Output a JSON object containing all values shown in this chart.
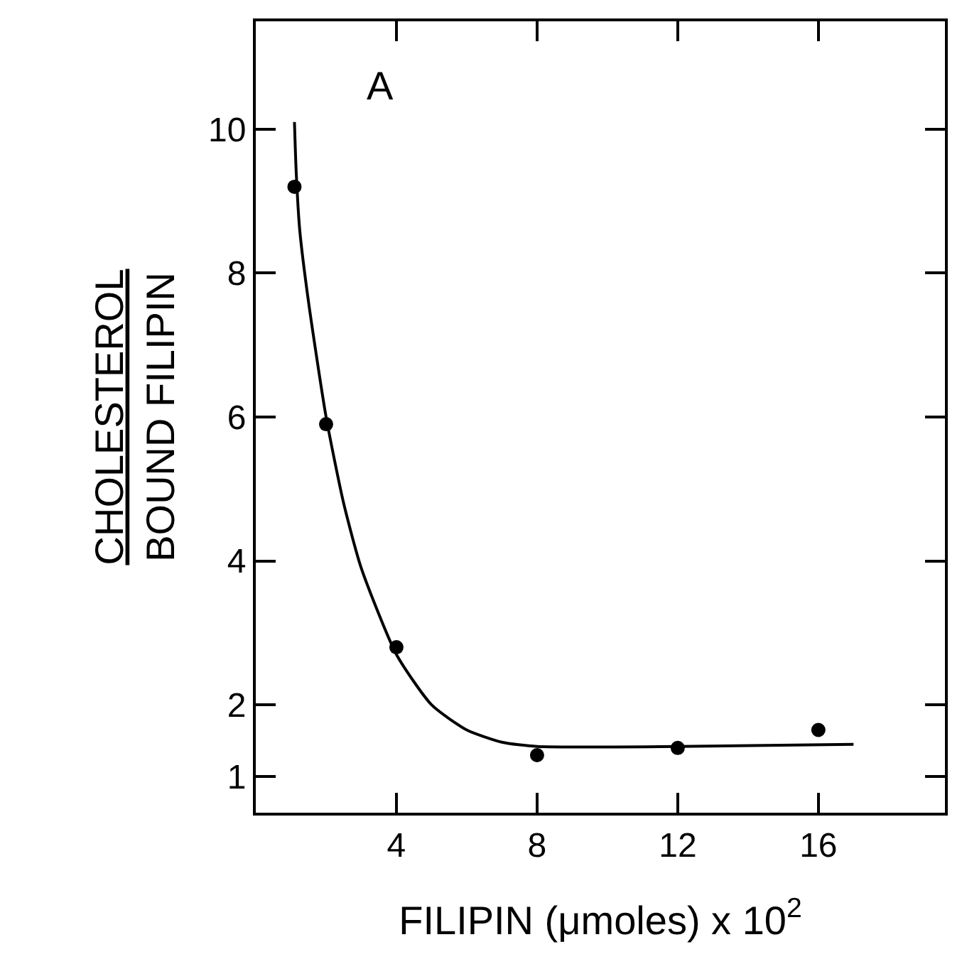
{
  "chart_data": {
    "type": "scatter",
    "xlabel": "FILIPIN (μmoles) x 10$^{2}$",
    "ylabel": "CHOLESTEROL\nBOUND FILIPIN",
    "annotations": [
      "A"
    ],
    "series": [
      {
        "color": "#000000",
        "marker": "circle",
        "x": [
          1.1,
          2,
          4,
          8,
          12,
          16
        ],
        "values": [
          9.2,
          5.9,
          2.8,
          1.3,
          1.4,
          1.65
        ]
      },
      {
        "type": "line",
        "color": "#000000",
        "marker": "none",
        "x": [
          1.1,
          1.15,
          1.25,
          1.5,
          2,
          2.5,
          3,
          4,
          5,
          6,
          7,
          8,
          12,
          17
        ],
        "values": [
          10.1,
          9.4,
          8.6,
          7.6,
          6.0,
          4.8,
          3.9,
          2.7,
          2.0,
          1.65,
          1.48,
          1.42,
          1.42,
          1.45
        ]
      }
    ],
    "xlim": [
      0,
      19.6
    ],
    "ylim": [
      0.5,
      11.5
    ],
    "xticks": [
      4,
      8,
      12,
      16
    ],
    "yticks": [
      1,
      2,
      4,
      6,
      8,
      10
    ]
  }
}
